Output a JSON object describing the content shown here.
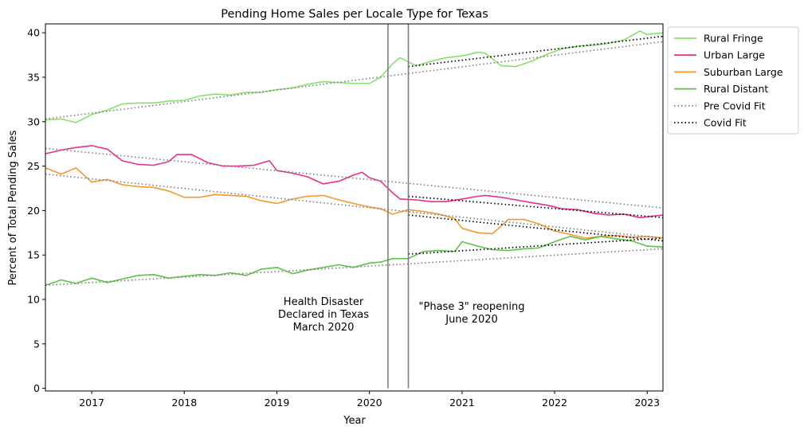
{
  "chart_data": {
    "type": "line",
    "title": "Pending Home Sales per Locale Type for Texas",
    "xlabel": "Year",
    "ylabel": "Percent of Total Pending Sales",
    "xlim": [
      2016.5,
      2023.17
    ],
    "ylim": [
      -0.3,
      41.0
    ],
    "x_ticks": [
      2017,
      2018,
      2019,
      2020,
      2021,
      2022,
      2023
    ],
    "y_ticks": [
      0,
      5,
      10,
      15,
      20,
      25,
      30,
      35,
      40
    ],
    "grid": false,
    "legend_position": "outside top-right",
    "series": [
      {
        "name": "Rural Fringe",
        "color": "#88e06e",
        "x": [
          2016.5,
          2016.67,
          2016.83,
          2017.0,
          2017.17,
          2017.33,
          2017.5,
          2017.67,
          2017.83,
          2018.0,
          2018.17,
          2018.33,
          2018.5,
          2018.67,
          2018.83,
          2019.0,
          2019.17,
          2019.33,
          2019.5,
          2019.67,
          2019.83,
          2020.0,
          2020.12,
          2020.25,
          2020.33,
          2020.5,
          2020.67,
          2020.83,
          2021.0,
          2021.17,
          2021.25,
          2021.42,
          2021.58,
          2021.75,
          2021.92,
          2022.08,
          2022.25,
          2022.42,
          2022.58,
          2022.75,
          2022.92,
          2023.0,
          2023.17
        ],
        "values": [
          30.2,
          30.3,
          29.9,
          30.8,
          31.3,
          32.0,
          32.1,
          32.1,
          32.3,
          32.4,
          32.9,
          33.1,
          33.0,
          33.3,
          33.3,
          33.6,
          33.8,
          34.2,
          34.5,
          34.4,
          34.3,
          34.3,
          35.0,
          36.5,
          37.2,
          36.3,
          36.8,
          37.2,
          37.4,
          37.8,
          37.7,
          36.3,
          36.2,
          36.8,
          37.6,
          38.2,
          38.5,
          38.6,
          38.8,
          39.2,
          40.2,
          39.8,
          40.0
        ]
      },
      {
        "name": "Urban Large",
        "color": "#e6318a",
        "x": [
          2016.5,
          2016.67,
          2016.83,
          2017.0,
          2017.17,
          2017.33,
          2017.5,
          2017.67,
          2017.83,
          2017.92,
          2018.08,
          2018.25,
          2018.42,
          2018.58,
          2018.75,
          2018.92,
          2019.0,
          2019.17,
          2019.33,
          2019.5,
          2019.67,
          2019.83,
          2019.92,
          2020.0,
          2020.12,
          2020.25,
          2020.33,
          2020.5,
          2020.67,
          2020.83,
          2021.0,
          2021.17,
          2021.25,
          2021.42,
          2021.58,
          2021.75,
          2021.92,
          2022.08,
          2022.25,
          2022.42,
          2022.58,
          2022.75,
          2022.92,
          2023.0,
          2023.17
        ],
        "values": [
          26.4,
          26.8,
          27.1,
          27.3,
          26.9,
          25.6,
          25.2,
          25.1,
          25.5,
          26.3,
          26.3,
          25.4,
          25.0,
          25.0,
          25.1,
          25.6,
          24.5,
          24.2,
          23.8,
          23.0,
          23.3,
          24.0,
          24.3,
          23.7,
          23.3,
          22.0,
          21.3,
          21.2,
          21.0,
          21.0,
          21.3,
          21.6,
          21.7,
          21.5,
          21.2,
          20.9,
          20.6,
          20.2,
          20.1,
          19.7,
          19.5,
          19.6,
          19.2,
          19.3,
          19.5
        ]
      },
      {
        "name": "Suburban Large",
        "color": "#f7962e",
        "x": [
          2016.5,
          2016.67,
          2016.83,
          2017.0,
          2017.17,
          2017.33,
          2017.5,
          2017.67,
          2017.83,
          2018.0,
          2018.17,
          2018.33,
          2018.5,
          2018.67,
          2018.83,
          2019.0,
          2019.17,
          2019.33,
          2019.5,
          2019.67,
          2019.83,
          2020.0,
          2020.12,
          2020.25,
          2020.42,
          2020.58,
          2020.75,
          2020.92,
          2021.0,
          2021.17,
          2021.33,
          2021.5,
          2021.67,
          2021.83,
          2022.0,
          2022.17,
          2022.33,
          2022.5,
          2022.67,
          2022.83,
          2023.0,
          2023.17
        ],
        "values": [
          24.8,
          24.1,
          24.8,
          23.2,
          23.5,
          22.9,
          22.7,
          22.6,
          22.2,
          21.5,
          21.5,
          21.8,
          21.7,
          21.6,
          21.1,
          20.8,
          21.3,
          21.6,
          21.7,
          21.2,
          20.8,
          20.4,
          20.2,
          19.6,
          20.1,
          19.9,
          19.6,
          19.1,
          18.0,
          17.5,
          17.4,
          19.0,
          19.0,
          18.5,
          17.7,
          17.3,
          16.9,
          17.1,
          17.2,
          17.0,
          17.1,
          16.9
        ]
      },
      {
        "name": "Rural Distant",
        "color": "#5cc24a",
        "x": [
          2016.5,
          2016.67,
          2016.83,
          2017.0,
          2017.17,
          2017.33,
          2017.5,
          2017.67,
          2017.83,
          2018.0,
          2018.17,
          2018.33,
          2018.5,
          2018.67,
          2018.83,
          2019.0,
          2019.17,
          2019.33,
          2019.5,
          2019.67,
          2019.83,
          2020.0,
          2020.12,
          2020.25,
          2020.42,
          2020.58,
          2020.75,
          2020.92,
          2021.0,
          2021.17,
          2021.33,
          2021.5,
          2021.67,
          2021.83,
          2022.0,
          2022.17,
          2022.33,
          2022.5,
          2022.67,
          2022.83,
          2023.0,
          2023.17
        ],
        "values": [
          11.6,
          12.2,
          11.8,
          12.4,
          11.9,
          12.3,
          12.7,
          12.8,
          12.4,
          12.6,
          12.8,
          12.7,
          13.0,
          12.7,
          13.4,
          13.6,
          12.9,
          13.3,
          13.6,
          13.9,
          13.6,
          14.1,
          14.2,
          14.6,
          14.6,
          15.4,
          15.5,
          15.4,
          16.5,
          16.0,
          15.6,
          15.5,
          15.7,
          15.8,
          16.5,
          17.1,
          16.7,
          17.1,
          16.8,
          16.6,
          16.0,
          15.9
        ]
      },
      {
        "name": "Pre Covid Fit",
        "color": "#808080",
        "style": "dotted",
        "segments": [
          {
            "x": [
              2016.5,
              2023.17
            ],
            "values": [
              30.3,
              39.0
            ]
          },
          {
            "x": [
              2016.5,
              2023.17
            ],
            "values": [
              27.0,
              20.3
            ]
          },
          {
            "x": [
              2016.5,
              2023.17
            ],
            "values": [
              24.1,
              16.9
            ]
          },
          {
            "x": [
              2016.5,
              2023.17
            ],
            "values": [
              11.6,
              15.7
            ]
          }
        ]
      },
      {
        "name": "Covid Fit",
        "color": "#000000",
        "style": "dotted",
        "segments": [
          {
            "x": [
              2020.42,
              2023.17
            ],
            "values": [
              36.2,
              39.6
            ]
          },
          {
            "x": [
              2020.42,
              2023.17
            ],
            "values": [
              21.6,
              19.2
            ]
          },
          {
            "x": [
              2020.42,
              2023.17
            ],
            "values": [
              19.5,
              16.6
            ]
          },
          {
            "x": [
              2020.42,
              2023.17
            ],
            "values": [
              15.1,
              16.9
            ]
          }
        ]
      }
    ],
    "vlines": [
      {
        "x": 2020.2,
        "color": "#808080"
      },
      {
        "x": 2020.42,
        "color": "#808080"
      }
    ],
    "annotations": [
      {
        "lines": [
          "Health Disaster",
          "Declared in Texas",
          "",
          "March 2020"
        ]
      },
      {
        "lines": [
          "\"Phase 3\" reopening",
          "",
          "June 2020"
        ]
      }
    ]
  }
}
